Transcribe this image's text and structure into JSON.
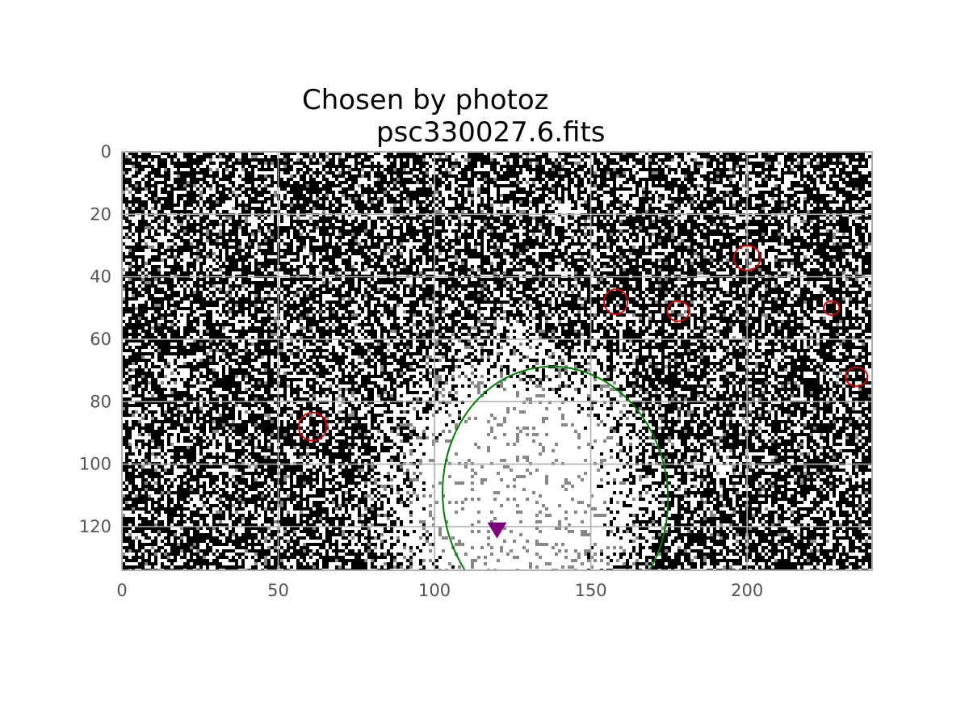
{
  "chart_data": {
    "type": "image",
    "title_lines": [
      "Chosen by photoz",
      "psc330027.6.fits"
    ],
    "xlabel": "",
    "ylabel": "",
    "xlim": [
      0,
      240
    ],
    "ylim": [
      134,
      0
    ],
    "y_inverted": true,
    "x_ticks": [
      0,
      50,
      100,
      150,
      200
    ],
    "y_ticks": [
      0,
      20,
      40,
      60,
      80,
      100,
      120
    ],
    "grid": true,
    "image": {
      "colormap": "gray",
      "bright_region_center": [
        125,
        110
      ],
      "description_values": "noisy sky background with bright central source"
    },
    "ellipses": {
      "chosen": {
        "center": [
          142,
          105
        ],
        "width": 72,
        "height": 83,
        "angle_deg": 0,
        "color": "#008000"
      },
      "sources": [
        {
          "center": [
            61,
            88
          ],
          "width": 9,
          "height": 9,
          "color": "#dd0000"
        },
        {
          "center": [
            158,
            48
          ],
          "width": 7.5,
          "height": 8,
          "color": "#dd0000"
        },
        {
          "center": [
            178,
            51
          ],
          "width": 7,
          "height": 6.5,
          "color": "#dd0000"
        },
        {
          "center": [
            200,
            34
          ],
          "width": 8.5,
          "height": 8,
          "color": "#dd0000"
        },
        {
          "center": [
            227,
            50
          ],
          "width": 5,
          "height": 4.5,
          "color": "#dd0000"
        },
        {
          "center": [
            235,
            72
          ],
          "width": 7,
          "height": 6,
          "color": "#dd0000"
        }
      ]
    },
    "marker": {
      "type": "triangle-down",
      "position": [
        120,
        121
      ],
      "color": "#800080"
    },
    "colors": {
      "grid": "#b0b0b0",
      "spine": "#b0b0b0",
      "tick_text": "#555555"
    }
  }
}
